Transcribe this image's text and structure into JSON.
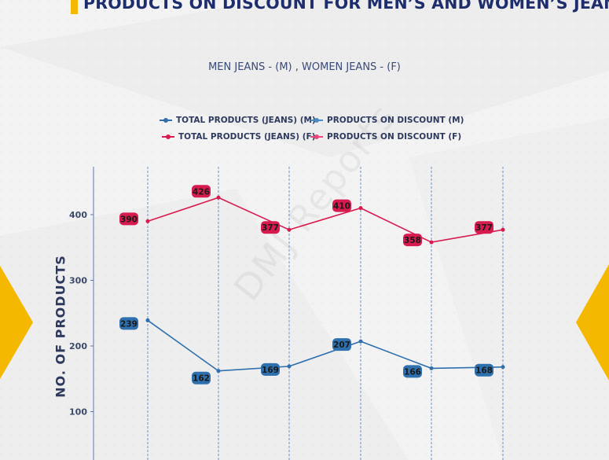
{
  "title": "PRODUCTS ON DISCOUNT FOR MEN’S AND WOMEN’S JEANS",
  "subtitle": "MEN JEANS - (M) , WOMEN JEANS - (F)",
  "watermark": "DMJ Reports",
  "colors": {
    "men": "#2e6fad",
    "women": "#d81b4e",
    "accent": "#f5b800",
    "text": "#1e2d6b"
  },
  "legend": [
    {
      "label": "TOTAL PRODUCTS (JEANS) (M)",
      "color": "#2e6fad"
    },
    {
      "label": "PRODUCTS ON DISCOUNT (M)",
      "color": "#4a8cc2"
    },
    {
      "label": "TOTAL PRODUCTS (JEANS) (F)",
      "color": "#d81b4e"
    },
    {
      "label": "PRODUCTS ON DISCOUNT (F)",
      "color": "#e8487a"
    }
  ],
  "chart_data": {
    "type": "line",
    "ylabel": "NO. OF PRODUCTS",
    "xlabel": "",
    "ylim": [
      0,
      460
    ],
    "yticks": [
      100,
      200,
      300,
      400
    ],
    "x_categories": 6,
    "grid": "vertical dashed",
    "legend_placement": "top-center",
    "series": [
      {
        "name": "TOTAL PRODUCTS (JEANS) (M)",
        "values": [
          239,
          162,
          169,
          207,
          166,
          168
        ]
      },
      {
        "name": "TOTAL PRODUCTS (JEANS) (F)",
        "values": [
          390,
          426,
          377,
          410,
          358,
          377
        ]
      }
    ]
  }
}
